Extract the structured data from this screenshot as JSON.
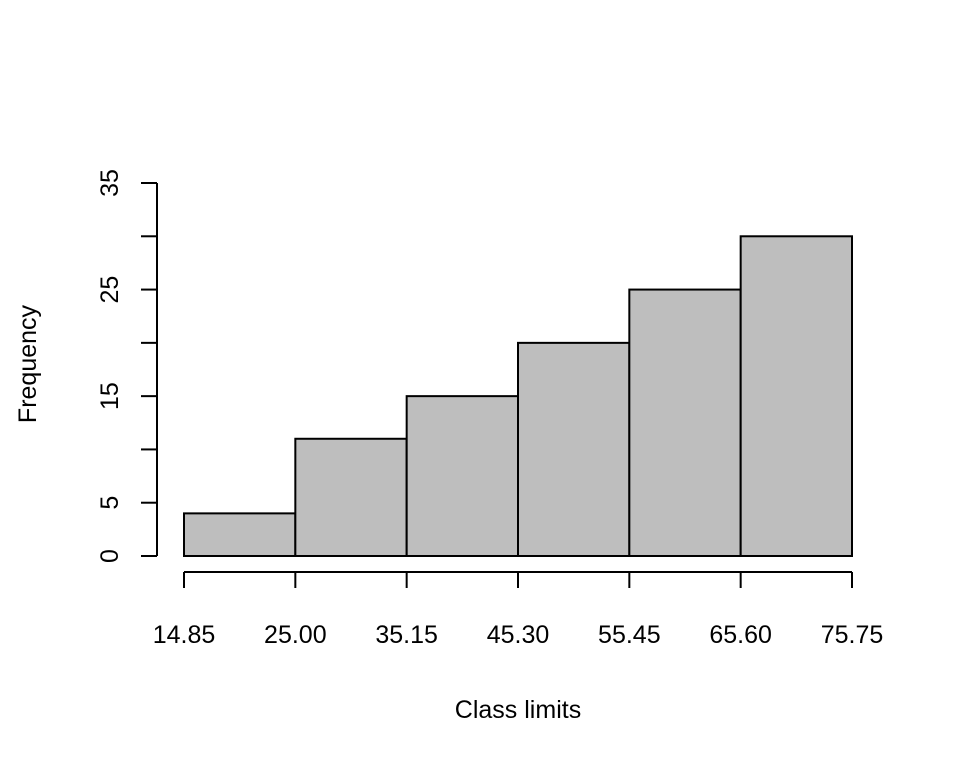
{
  "chart_data": {
    "type": "bar",
    "subtype": "histogram",
    "title": "",
    "xlabel": "Class limits",
    "ylabel": "Frequency",
    "breaks": [
      14.85,
      25.0,
      35.15,
      45.3,
      55.45,
      65.6,
      75.75
    ],
    "x_tick_labels": [
      "14.85",
      "25.00",
      "35.15",
      "45.30",
      "55.45",
      "65.60",
      "75.75"
    ],
    "categories": [
      "14.85–25.00",
      "25.00–35.15",
      "35.15–45.30",
      "45.30–55.45",
      "55.45–65.60",
      "65.60–75.75"
    ],
    "values": [
      4,
      11,
      15,
      20,
      25,
      30
    ],
    "ylim": [
      0,
      35
    ],
    "y_ticks": [
      0,
      5,
      10,
      15,
      20,
      25,
      30,
      35
    ],
    "y_tick_labels": [
      "0",
      "5",
      "",
      "15",
      "",
      "25",
      "",
      "35"
    ],
    "grid": false,
    "colors": {
      "bar_fill": "#bebebe",
      "bar_stroke": "#000000",
      "axis": "#000000",
      "background": "#ffffff"
    }
  }
}
